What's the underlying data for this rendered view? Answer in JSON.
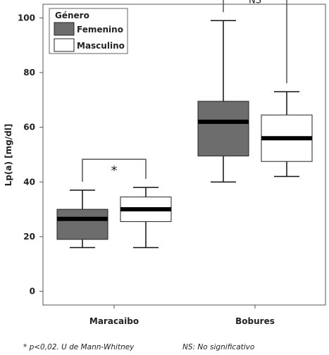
{
  "chart_data": {
    "type": "box",
    "ylabel": "Lp(a) [mg/dl]",
    "ylim": [
      -5,
      105
    ],
    "yticks": [
      0,
      20,
      40,
      60,
      80,
      100
    ],
    "categories": [
      "Maracaibo",
      "Bobures"
    ],
    "legend": {
      "title": "Género",
      "position": "top-left",
      "entries": [
        {
          "label": "Femenino",
          "color": "#6d6d6d"
        },
        {
          "label": "Masculino",
          "color": "#ffffff"
        }
      ]
    },
    "series": [
      {
        "name": "Femenino",
        "color": "#6d6d6d",
        "boxes": [
          {
            "category": "Maracaibo",
            "min": 16,
            "q1": 19,
            "median": 26.5,
            "q3": 30,
            "max": 37
          },
          {
            "category": "Bobures",
            "min": 40,
            "q1": 49.5,
            "median": 62,
            "q3": 69.5,
            "max": 99
          }
        ]
      },
      {
        "name": "Masculino",
        "color": "#ffffff",
        "boxes": [
          {
            "category": "Maracaibo",
            "min": 16,
            "q1": 25.5,
            "median": 30,
            "q3": 34.5,
            "max": 38
          },
          {
            "category": "Bobures",
            "min": 42,
            "q1": 47.5,
            "median": 56,
            "q3": 64.5,
            "max": 73
          }
        ]
      }
    ],
    "significance": [
      {
        "category": "Maracaibo",
        "label": "*"
      },
      {
        "category": "Bobures",
        "label": "NS"
      }
    ]
  },
  "footnotes": {
    "left": "* p<0,02. U de Mann-Whitney",
    "right": "NS: No significativo"
  }
}
